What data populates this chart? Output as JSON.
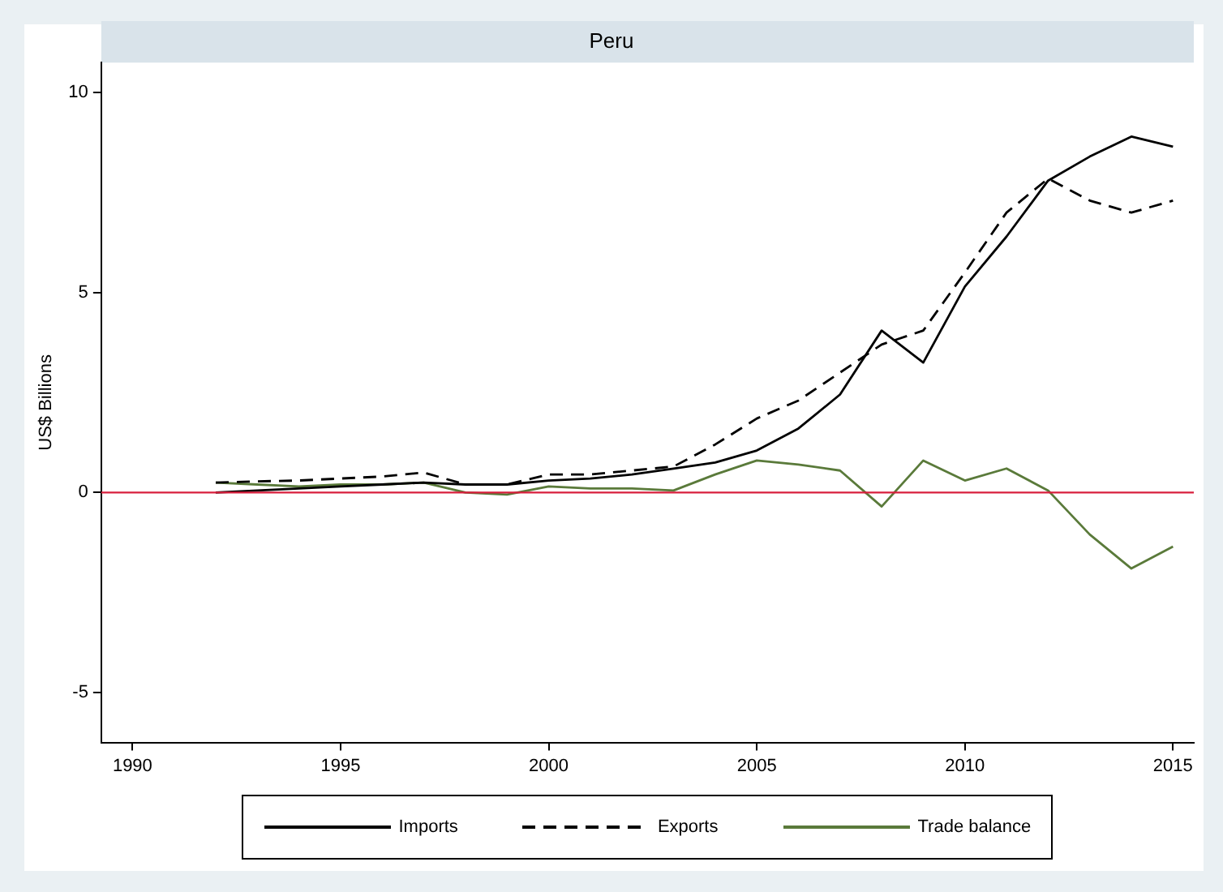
{
  "chart_data": {
    "type": "line",
    "title": "Peru",
    "ylabel": "US$ Billions",
    "x": [
      1992,
      1993,
      1994,
      1995,
      1996,
      1997,
      1998,
      1999,
      2000,
      2001,
      2002,
      2003,
      2004,
      2005,
      2006,
      2007,
      2008,
      2009,
      2010,
      2011,
      2012,
      2013,
      2014,
      2015
    ],
    "series": [
      {
        "name": "Imports",
        "color": "#000000",
        "line_style": "solid",
        "values": [
          0.0,
          0.05,
          0.1,
          0.15,
          0.2,
          0.25,
          0.2,
          0.2,
          0.3,
          0.35,
          0.45,
          0.6,
          0.75,
          1.05,
          1.6,
          2.45,
          4.05,
          3.25,
          5.15,
          6.4,
          7.8,
          8.4,
          8.9,
          8.65
        ]
      },
      {
        "name": "Exports",
        "color": "#000000",
        "line_style": "dashed",
        "values": [
          0.25,
          0.28,
          0.3,
          0.35,
          0.4,
          0.5,
          0.2,
          0.2,
          0.45,
          0.45,
          0.55,
          0.65,
          1.2,
          1.85,
          2.3,
          3.0,
          3.7,
          4.05,
          5.5,
          7.0,
          7.85,
          7.3,
          7.0,
          7.3
        ]
      },
      {
        "name": "Trade balance",
        "color": "#5a7a3a",
        "line_style": "solid",
        "values": [
          0.25,
          0.2,
          0.15,
          0.2,
          0.2,
          0.25,
          0.0,
          -0.05,
          0.15,
          0.1,
          0.1,
          0.05,
          0.45,
          0.8,
          0.7,
          0.55,
          -0.35,
          0.8,
          0.3,
          0.6,
          0.05,
          -1.05,
          -1.9,
          -1.35
        ]
      }
    ],
    "xlim": [
      1989.25,
      2015.5
    ],
    "xticks": [
      1990,
      1995,
      2000,
      2005,
      2010,
      2015
    ],
    "ylim": [
      -6.25,
      10.75
    ],
    "yticks": [
      -5,
      0,
      5,
      10
    ],
    "ref_lines": [
      {
        "axis": "y",
        "value": 0,
        "color": "#d81e3c"
      }
    ],
    "grid": false,
    "legend": "bottom",
    "marker": "none"
  }
}
